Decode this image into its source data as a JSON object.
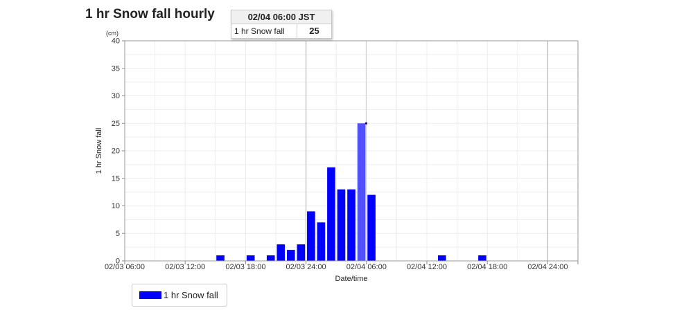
{
  "chart_data": {
    "type": "bar",
    "title": "1 hr Snow fall hourly",
    "ylabel": "1 hr Snow fall",
    "yunit": "(cm)",
    "xlabel": "Date/time",
    "ylim": [
      0,
      40
    ],
    "yticks": [
      "0",
      "5",
      "10",
      "15",
      "20",
      "25",
      "30",
      "35",
      "40"
    ],
    "xlim": [
      "02/03 06:00",
      "02/05 03:00"
    ],
    "xticks": [
      {
        "at": "02/03 06:00",
        "label": "02/03 06:00"
      },
      {
        "at": "02/03 12:00",
        "label": "02/03 12:00"
      },
      {
        "at": "02/03 18:00",
        "label": "02/03 18:00"
      },
      {
        "at": "02/04 00:00",
        "label": "02/03 24:00"
      },
      {
        "at": "02/04 06:00",
        "label": "02/04 06:00"
      },
      {
        "at": "02/04 12:00",
        "label": "02/04 12:00"
      },
      {
        "at": "02/04 18:00",
        "label": "02/04 18:00"
      },
      {
        "at": "02/05 00:00",
        "label": "02/04 24:00"
      }
    ],
    "day_lines": [
      "02/04 00:00",
      "02/05 00:00"
    ],
    "grid": true,
    "legend_position": "bottom-left",
    "series": [
      {
        "name": "1 hr Snow fall",
        "color": "#0000ff",
        "points": [
          {
            "x": "02/03 15:00",
            "y": 1
          },
          {
            "x": "02/03 18:00",
            "y": 1
          },
          {
            "x": "02/03 20:00",
            "y": 1
          },
          {
            "x": "02/03 21:00",
            "y": 3
          },
          {
            "x": "02/03 22:00",
            "y": 2
          },
          {
            "x": "02/03 23:00",
            "y": 3
          },
          {
            "x": "02/04 00:00",
            "y": 9
          },
          {
            "x": "02/04 01:00",
            "y": 7
          },
          {
            "x": "02/04 02:00",
            "y": 17
          },
          {
            "x": "02/04 03:00",
            "y": 13
          },
          {
            "x": "02/04 04:00",
            "y": 13
          },
          {
            "x": "02/04 05:00",
            "y": 25
          },
          {
            "x": "02/04 06:00",
            "y": 12
          },
          {
            "x": "02/04 13:00",
            "y": 1
          },
          {
            "x": "02/04 17:00",
            "y": 1
          }
        ]
      }
    ],
    "highlight": {
      "x": "02/04 05:00",
      "color": "#5050ff"
    }
  },
  "tooltip": {
    "header": "02/04 06:00 JST",
    "label": "1 hr Snow fall",
    "value": "25"
  },
  "legend": {
    "label": "1 hr Snow fall",
    "color": "#0000ff"
  }
}
